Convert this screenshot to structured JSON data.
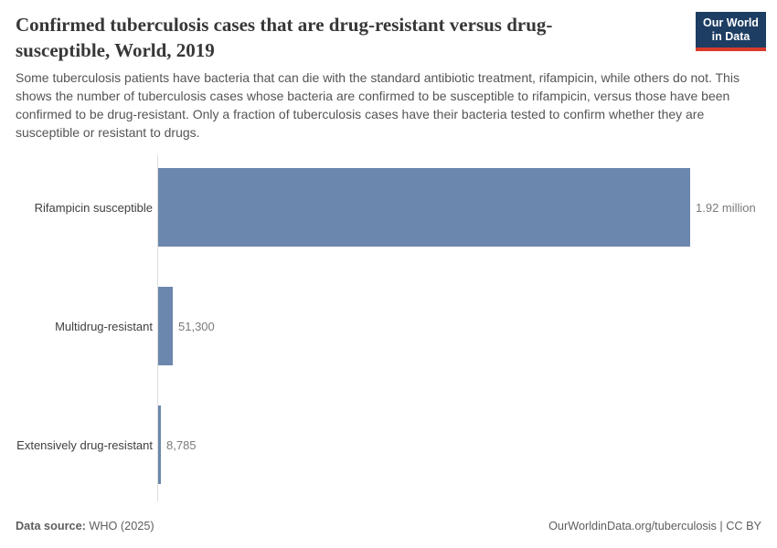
{
  "header": {
    "title": "Confirmed tuberculosis cases that are drug-resistant versus drug-susceptible, World, 2019",
    "logo_line1": "Our World",
    "logo_line2": "in Data"
  },
  "subtitle": "Some tuberculosis patients have bacteria that can die with the standard antibiotic treatment, rifampicin, while others do not. This shows the number of tuberculosis cases whose bacteria are confirmed to be susceptible to rifampicin, versus those have been confirmed to be drug-resistant. Only a fraction of tuberculosis cases have their bacteria tested to confirm whether they are susceptible or resistant to drugs.",
  "chart_data": {
    "type": "bar",
    "orientation": "horizontal",
    "title": "Confirmed tuberculosis cases that are drug-resistant versus drug-susceptible, World, 2019",
    "categories": [
      "Rifampicin susceptible",
      "Multidrug-resistant",
      "Extensively drug-resistant"
    ],
    "values": [
      1920000,
      51300,
      8785
    ],
    "value_labels": [
      "1.92 million",
      "51,300",
      "8,785"
    ],
    "xlim": [
      0,
      1920000
    ],
    "grid": false,
    "legend": "none",
    "bar_color": "#6c87ad"
  },
  "footer": {
    "source_label": "Data source:",
    "source_value": "WHO (2025)",
    "right_text": "OurWorldinData.org/tuberculosis | CC BY"
  },
  "colors": {
    "bar": "#6c87ad",
    "axis": "#dedede",
    "logo_bg": "#1d3d63",
    "logo_stripe": "#d93a2b"
  }
}
